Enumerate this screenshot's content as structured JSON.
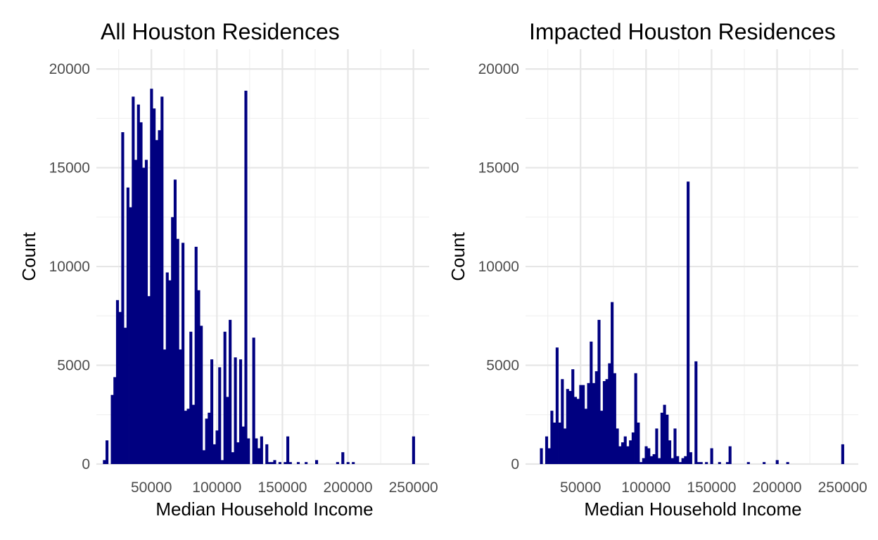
{
  "colors": {
    "bar": "#000080",
    "grid_major": "#e6e6e6",
    "grid_minor": "#f0f0f0",
    "tick_text": "#4d4d4d"
  },
  "chart_data": [
    {
      "type": "bar",
      "title": "All Houston Residences",
      "xlabel": "Median Household Income",
      "ylabel": "Count",
      "xlim": [
        8000,
        262000
      ],
      "ylim": [
        0,
        21000
      ],
      "x_ticks": [
        "50000",
        "100000",
        "150000",
        "200000",
        "250000"
      ],
      "y_ticks": [
        "0",
        "5000",
        "10000",
        "15000",
        "20000"
      ],
      "grid": true,
      "bin_width": 2000,
      "bins": [
        {
          "x": 14000,
          "count": 200
        },
        {
          "x": 16000,
          "count": 1200
        },
        {
          "x": 20000,
          "count": 3500
        },
        {
          "x": 22000,
          "count": 4400
        },
        {
          "x": 24000,
          "count": 8300
        },
        {
          "x": 26000,
          "count": 7700
        },
        {
          "x": 28000,
          "count": 16800
        },
        {
          "x": 30000,
          "count": 6900
        },
        {
          "x": 32000,
          "count": 14000
        },
        {
          "x": 34000,
          "count": 13000
        },
        {
          "x": 36000,
          "count": 18600
        },
        {
          "x": 38000,
          "count": 15400
        },
        {
          "x": 40000,
          "count": 18200
        },
        {
          "x": 42000,
          "count": 17300
        },
        {
          "x": 44000,
          "count": 15000
        },
        {
          "x": 46000,
          "count": 15400
        },
        {
          "x": 48000,
          "count": 8500
        },
        {
          "x": 50000,
          "count": 19000
        },
        {
          "x": 52000,
          "count": 18000
        },
        {
          "x": 54000,
          "count": 16400
        },
        {
          "x": 56000,
          "count": 16900
        },
        {
          "x": 58000,
          "count": 18600
        },
        {
          "x": 60000,
          "count": 5800
        },
        {
          "x": 62000,
          "count": 9700
        },
        {
          "x": 64000,
          "count": 9300
        },
        {
          "x": 66000,
          "count": 12500
        },
        {
          "x": 68000,
          "count": 14400
        },
        {
          "x": 70000,
          "count": 11400
        },
        {
          "x": 72000,
          "count": 5800
        },
        {
          "x": 74000,
          "count": 11200
        },
        {
          "x": 76000,
          "count": 2700
        },
        {
          "x": 78000,
          "count": 2800
        },
        {
          "x": 80000,
          "count": 6700
        },
        {
          "x": 82000,
          "count": 3000
        },
        {
          "x": 84000,
          "count": 11000
        },
        {
          "x": 86000,
          "count": 8800
        },
        {
          "x": 88000,
          "count": 7000
        },
        {
          "x": 90000,
          "count": 700
        },
        {
          "x": 92000,
          "count": 2300
        },
        {
          "x": 94000,
          "count": 2600
        },
        {
          "x": 96000,
          "count": 5300
        },
        {
          "x": 98000,
          "count": 1000
        },
        {
          "x": 100000,
          "count": 1700
        },
        {
          "x": 102000,
          "count": 4900
        },
        {
          "x": 104000,
          "count": 200
        },
        {
          "x": 106000,
          "count": 6700
        },
        {
          "x": 108000,
          "count": 3400
        },
        {
          "x": 110000,
          "count": 7300
        },
        {
          "x": 112000,
          "count": 600
        },
        {
          "x": 114000,
          "count": 5400
        },
        {
          "x": 116000,
          "count": 1100
        },
        {
          "x": 118000,
          "count": 5300
        },
        {
          "x": 120000,
          "count": 1900
        },
        {
          "x": 122000,
          "count": 18900
        },
        {
          "x": 124000,
          "count": 1300
        },
        {
          "x": 128000,
          "count": 6400
        },
        {
          "x": 130000,
          "count": 1300
        },
        {
          "x": 132000,
          "count": 800
        },
        {
          "x": 134000,
          "count": 1400
        },
        {
          "x": 138000,
          "count": 1000
        },
        {
          "x": 140000,
          "count": 100
        },
        {
          "x": 142000,
          "count": 100
        },
        {
          "x": 144000,
          "count": 200
        },
        {
          "x": 148000,
          "count": 100
        },
        {
          "x": 152000,
          "count": 100
        },
        {
          "x": 154000,
          "count": 1400
        },
        {
          "x": 156000,
          "count": 100
        },
        {
          "x": 162000,
          "count": 100
        },
        {
          "x": 168000,
          "count": 100
        },
        {
          "x": 176000,
          "count": 200
        },
        {
          "x": 192000,
          "count": 100
        },
        {
          "x": 196000,
          "count": 600
        },
        {
          "x": 200000,
          "count": 100
        },
        {
          "x": 204000,
          "count": 100
        },
        {
          "x": 250000,
          "count": 1400
        }
      ]
    },
    {
      "type": "bar",
      "title": "Impacted Houston Residences",
      "xlabel": "Median Household Income",
      "ylabel": "Count",
      "xlim": [
        8000,
        262000
      ],
      "ylim": [
        0,
        21000
      ],
      "x_ticks": [
        "50000",
        "100000",
        "150000",
        "200000",
        "250000"
      ],
      "y_ticks": [
        "0",
        "5000",
        "10000",
        "15000",
        "20000"
      ],
      "grid": true,
      "bin_width": 2000,
      "bins": [
        {
          "x": 20000,
          "count": 800
        },
        {
          "x": 24000,
          "count": 1400
        },
        {
          "x": 26000,
          "count": 800
        },
        {
          "x": 28000,
          "count": 2700
        },
        {
          "x": 30000,
          "count": 2100
        },
        {
          "x": 32000,
          "count": 5900
        },
        {
          "x": 34000,
          "count": 2100
        },
        {
          "x": 36000,
          "count": 4300
        },
        {
          "x": 38000,
          "count": 1800
        },
        {
          "x": 40000,
          "count": 3800
        },
        {
          "x": 42000,
          "count": 3700
        },
        {
          "x": 44000,
          "count": 4800
        },
        {
          "x": 46000,
          "count": 3400
        },
        {
          "x": 48000,
          "count": 3300
        },
        {
          "x": 50000,
          "count": 4000
        },
        {
          "x": 52000,
          "count": 4000
        },
        {
          "x": 54000,
          "count": 2800
        },
        {
          "x": 56000,
          "count": 4100
        },
        {
          "x": 58000,
          "count": 6200
        },
        {
          "x": 60000,
          "count": 4100
        },
        {
          "x": 62000,
          "count": 4700
        },
        {
          "x": 64000,
          "count": 7300
        },
        {
          "x": 66000,
          "count": 2700
        },
        {
          "x": 68000,
          "count": 4200
        },
        {
          "x": 70000,
          "count": 4300
        },
        {
          "x": 72000,
          "count": 5100
        },
        {
          "x": 74000,
          "count": 8200
        },
        {
          "x": 76000,
          "count": 4600
        },
        {
          "x": 78000,
          "count": 1800
        },
        {
          "x": 80000,
          "count": 900
        },
        {
          "x": 82000,
          "count": 1100
        },
        {
          "x": 84000,
          "count": 1400
        },
        {
          "x": 86000,
          "count": 900
        },
        {
          "x": 88000,
          "count": 1200
        },
        {
          "x": 90000,
          "count": 1600
        },
        {
          "x": 92000,
          "count": 4600
        },
        {
          "x": 94000,
          "count": 2100
        },
        {
          "x": 96000,
          "count": 100
        },
        {
          "x": 98000,
          "count": 300
        },
        {
          "x": 100000,
          "count": 900
        },
        {
          "x": 102000,
          "count": 800
        },
        {
          "x": 104000,
          "count": 400
        },
        {
          "x": 106000,
          "count": 500
        },
        {
          "x": 108000,
          "count": 1800
        },
        {
          "x": 110000,
          "count": 300
        },
        {
          "x": 112000,
          "count": 2600
        },
        {
          "x": 114000,
          "count": 3000
        },
        {
          "x": 116000,
          "count": 2500
        },
        {
          "x": 118000,
          "count": 1200
        },
        {
          "x": 120000,
          "count": 300
        },
        {
          "x": 122000,
          "count": 1800
        },
        {
          "x": 124000,
          "count": 400
        },
        {
          "x": 126000,
          "count": 100
        },
        {
          "x": 128000,
          "count": 300
        },
        {
          "x": 130000,
          "count": 400
        },
        {
          "x": 132000,
          "count": 14300
        },
        {
          "x": 134000,
          "count": 600
        },
        {
          "x": 138000,
          "count": 5200
        },
        {
          "x": 140000,
          "count": 100
        },
        {
          "x": 142000,
          "count": 100
        },
        {
          "x": 146000,
          "count": 100
        },
        {
          "x": 150000,
          "count": 800
        },
        {
          "x": 156000,
          "count": 100
        },
        {
          "x": 162000,
          "count": 100
        },
        {
          "x": 164000,
          "count": 900
        },
        {
          "x": 178000,
          "count": 100
        },
        {
          "x": 190000,
          "count": 100
        },
        {
          "x": 200000,
          "count": 200
        },
        {
          "x": 208000,
          "count": 100
        },
        {
          "x": 250000,
          "count": 1000
        }
      ]
    }
  ]
}
